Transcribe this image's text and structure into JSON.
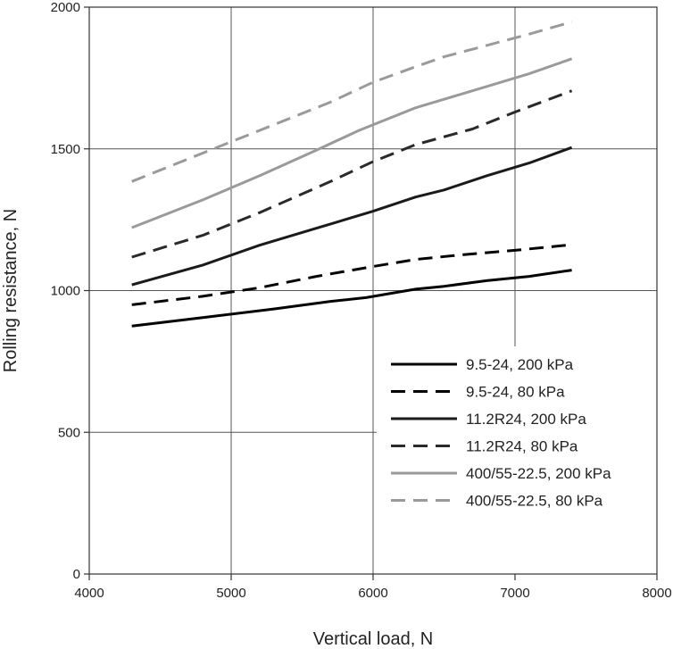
{
  "chart_data": {
    "type": "line",
    "title": "",
    "xlabel": "Vertical load, N",
    "ylabel": "Rolling resistance, N",
    "xlim": [
      4000,
      8000
    ],
    "ylim": [
      0,
      2000
    ],
    "xticks": [
      "4000",
      "5000",
      "6000",
      "7000",
      "8000"
    ],
    "yticks": [
      "0",
      "500",
      "1000",
      "1500",
      "2000"
    ],
    "grid": true,
    "legend_position": "lower-right",
    "series": [
      {
        "name": "9.5-24, 200 kPa",
        "color": "#000000",
        "dashed": false,
        "x": [
          4300,
          4800,
          5300,
          5700,
          5950,
          6300,
          6500,
          6800,
          7100,
          7400
        ],
        "y": [
          875,
          905,
          935,
          962,
          975,
          1005,
          1015,
          1035,
          1050,
          1072
        ]
      },
      {
        "name": "9.5-24, 80 kPa",
        "color": "#000000",
        "dashed": true,
        "x": [
          4300,
          4800,
          5200,
          5600,
          6000,
          6300,
          6600,
          7000,
          7400
        ],
        "y": [
          950,
          980,
          1010,
          1050,
          1085,
          1110,
          1125,
          1142,
          1162
        ]
      },
      {
        "name": "11.2R24, 200 kPa",
        "color": "#1a1a1a",
        "dashed": false,
        "x": [
          4300,
          4800,
          5200,
          5700,
          6000,
          6300,
          6500,
          6800,
          7100,
          7400
        ],
        "y": [
          1020,
          1090,
          1160,
          1235,
          1280,
          1330,
          1355,
          1405,
          1450,
          1505
        ]
      },
      {
        "name": "11.2R24, 80 kPa",
        "color": "#2a2a2a",
        "dashed": true,
        "x": [
          4300,
          4800,
          5200,
          5700,
          6000,
          6300,
          6700,
          7000,
          7400
        ],
        "y": [
          1118,
          1195,
          1275,
          1385,
          1455,
          1515,
          1570,
          1630,
          1705
        ]
      },
      {
        "name": "400/55-22.5, 200 kPa",
        "color": "#9a9a9a",
        "dashed": false,
        "x": [
          4300,
          4800,
          5200,
          5600,
          5900,
          6300,
          6500,
          6800,
          7100,
          7400
        ],
        "y": [
          1222,
          1320,
          1405,
          1495,
          1565,
          1645,
          1675,
          1720,
          1765,
          1818
        ]
      },
      {
        "name": "400/55-22.5, 80 kPa",
        "color": "#9a9a9a",
        "dashed": true,
        "x": [
          4300,
          4800,
          5200,
          5700,
          6000,
          6300,
          6500,
          6800,
          7100,
          7400
        ],
        "y": [
          1385,
          1485,
          1565,
          1665,
          1735,
          1790,
          1825,
          1865,
          1905,
          1948
        ]
      }
    ]
  }
}
